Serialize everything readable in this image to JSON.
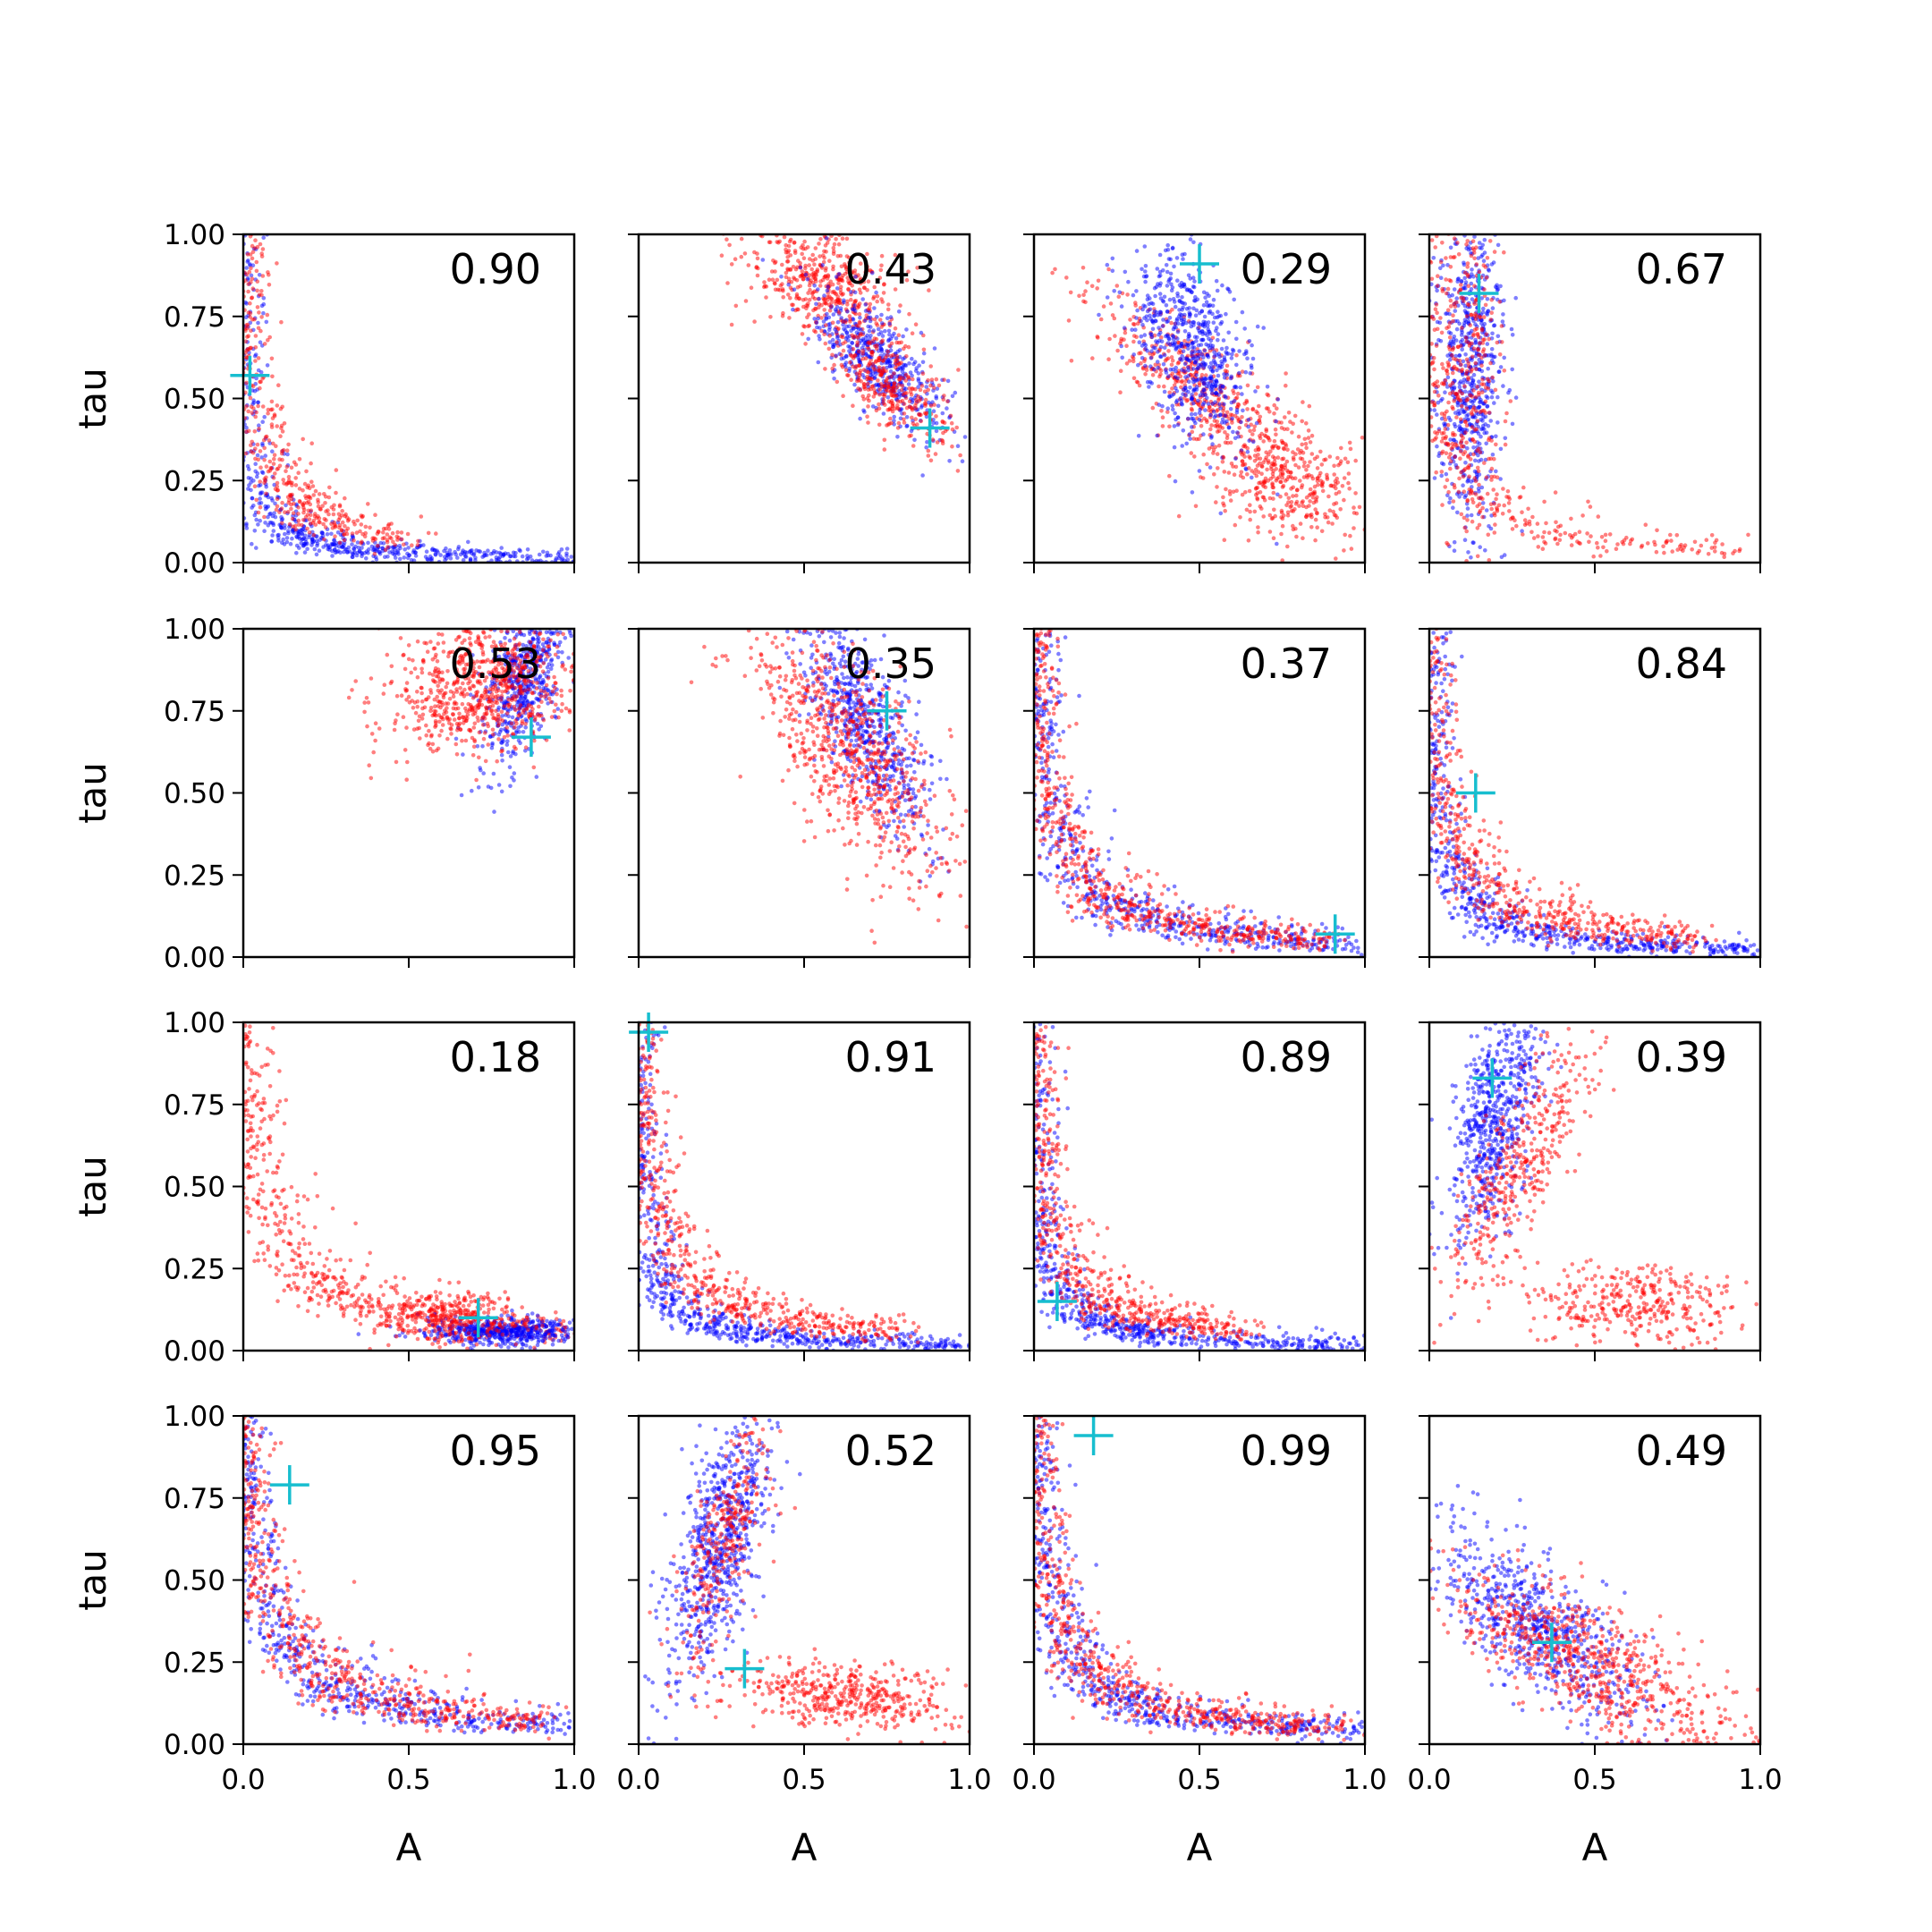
{
  "figure": {
    "xlabel": "A",
    "ylabel": "tau",
    "rows": 4,
    "cols": 4,
    "xlim": [
      0,
      1
    ],
    "ylim": [
      0,
      1
    ],
    "xticks": [
      "0.0",
      "0.5",
      "1.0"
    ],
    "yticks": [
      "0.00",
      "0.25",
      "0.50",
      "0.75",
      "1.00"
    ],
    "colors": {
      "series_a": "#0000ff",
      "series_b": "#ff0000",
      "marker": "#17becf"
    }
  },
  "chart_data": [
    {
      "type": "scatter",
      "value_label": "0.90",
      "marker": {
        "A": 0.02,
        "tau": 0.57
      },
      "clusters": [
        {
          "series": "blue",
          "shape": "hyperbola",
          "param": 0.015,
          "n": 600,
          "amax": 1.0
        },
        {
          "series": "red",
          "shape": "hyperbola",
          "param": 0.04,
          "n": 450,
          "amax": 0.5
        }
      ]
    },
    {
      "type": "scatter",
      "value_label": "0.43",
      "marker": {
        "A": 0.88,
        "tau": 0.41
      },
      "clusters": [
        {
          "series": "red",
          "shape": "blob",
          "cx": 0.55,
          "cy": 0.85,
          "sx": 0.12,
          "sy": 0.08,
          "rot": -0.6,
          "n": 450
        },
        {
          "series": "blue",
          "shape": "blob",
          "cx": 0.72,
          "cy": 0.62,
          "sx": 0.14,
          "sy": 0.05,
          "rot": -0.85,
          "n": 500
        },
        {
          "series": "red",
          "shape": "blob",
          "cx": 0.76,
          "cy": 0.55,
          "sx": 0.13,
          "sy": 0.05,
          "rot": -0.85,
          "n": 350
        }
      ]
    },
    {
      "type": "scatter",
      "value_label": "0.29",
      "marker": {
        "A": 0.5,
        "tau": 0.91
      },
      "clusters": [
        {
          "series": "red",
          "shape": "blob",
          "cx": 0.55,
          "cy": 0.48,
          "sx": 0.26,
          "sy": 0.07,
          "rot": -0.7,
          "n": 600
        },
        {
          "series": "blue",
          "shape": "blob",
          "cx": 0.48,
          "cy": 0.65,
          "sx": 0.16,
          "sy": 0.08,
          "rot": -1.2,
          "n": 650
        },
        {
          "series": "red",
          "shape": "blob",
          "cx": 0.78,
          "cy": 0.22,
          "sx": 0.12,
          "sy": 0.07,
          "rot": 0.0,
          "n": 250
        }
      ]
    },
    {
      "type": "scatter",
      "value_label": "0.67",
      "marker": {
        "A": 0.15,
        "tau": 0.82
      },
      "clusters": [
        {
          "series": "blue",
          "shape": "blob",
          "cx": 0.12,
          "cy": 0.6,
          "sx": 0.25,
          "sy": 0.05,
          "rot": 1.57,
          "n": 650
        },
        {
          "series": "red",
          "shape": "blob",
          "cx": 0.12,
          "cy": 0.62,
          "sx": 0.25,
          "sy": 0.05,
          "rot": 1.57,
          "n": 300
        },
        {
          "series": "red",
          "shape": "hyperbola",
          "param": 0.04,
          "n": 300,
          "amax": 0.95
        }
      ]
    },
    {
      "type": "scatter",
      "value_label": "0.53",
      "marker": {
        "A": 0.87,
        "tau": 0.67
      },
      "clusters": [
        {
          "series": "blue",
          "shape": "blob",
          "cx": 0.85,
          "cy": 0.85,
          "sx": 0.14,
          "sy": 0.05,
          "rot": 1.3,
          "n": 550
        },
        {
          "series": "red",
          "shape": "blob",
          "cx": 0.72,
          "cy": 0.82,
          "sx": 0.15,
          "sy": 0.09,
          "rot": 0.2,
          "n": 750
        }
      ]
    },
    {
      "type": "scatter",
      "value_label": "0.35",
      "marker": {
        "A": 0.75,
        "tau": 0.75
      },
      "clusters": [
        {
          "series": "blue",
          "shape": "blob",
          "cx": 0.68,
          "cy": 0.72,
          "sx": 0.18,
          "sy": 0.06,
          "rot": -1.1,
          "n": 600
        },
        {
          "series": "red",
          "shape": "blob",
          "cx": 0.64,
          "cy": 0.62,
          "sx": 0.24,
          "sy": 0.09,
          "rot": -1.0,
          "n": 750
        }
      ]
    },
    {
      "type": "scatter",
      "value_label": "0.37",
      "marker": {
        "A": 0.91,
        "tau": 0.07
      },
      "clusters": [
        {
          "series": "blue",
          "shape": "hyperbola",
          "param": 0.045,
          "n": 600,
          "amax": 1.0
        },
        {
          "series": "red",
          "shape": "hyperbola",
          "param": 0.05,
          "n": 650,
          "amax": 0.9
        }
      ]
    },
    {
      "type": "scatter",
      "value_label": "0.84",
      "marker": {
        "A": 0.14,
        "tau": 0.5
      },
      "clusters": [
        {
          "series": "blue",
          "shape": "hyperbola",
          "param": 0.025,
          "n": 650,
          "amax": 1.0
        },
        {
          "series": "red",
          "shape": "hyperbola",
          "param": 0.05,
          "n": 600,
          "amax": 0.8
        }
      ]
    },
    {
      "type": "scatter",
      "value_label": "0.18",
      "marker": {
        "A": 0.71,
        "tau": 0.1
      },
      "clusters": [
        {
          "series": "red",
          "shape": "hyperbola",
          "param": 0.065,
          "n": 600,
          "amax": 1.0
        },
        {
          "series": "blue",
          "shape": "blob",
          "cx": 0.78,
          "cy": 0.06,
          "sx": 0.12,
          "sy": 0.02,
          "rot": 0.0,
          "n": 500
        },
        {
          "series": "red",
          "shape": "blob",
          "cx": 0.62,
          "cy": 0.1,
          "sx": 0.12,
          "sy": 0.04,
          "rot": 0.0,
          "n": 300
        }
      ]
    },
    {
      "type": "scatter",
      "value_label": "0.91",
      "marker": {
        "A": 0.03,
        "tau": 0.97
      },
      "clusters": [
        {
          "series": "blue",
          "shape": "hyperbola",
          "param": 0.02,
          "n": 650,
          "amax": 1.0
        },
        {
          "series": "red",
          "shape": "hyperbola",
          "param": 0.05,
          "n": 600,
          "amax": 0.8
        }
      ]
    },
    {
      "type": "scatter",
      "value_label": "0.89",
      "marker": {
        "A": 0.07,
        "tau": 0.15
      },
      "clusters": [
        {
          "series": "blue",
          "shape": "hyperbola",
          "param": 0.018,
          "n": 650,
          "amax": 1.0
        },
        {
          "series": "red",
          "shape": "hyperbola",
          "param": 0.04,
          "n": 600,
          "amax": 0.65
        }
      ]
    },
    {
      "type": "scatter",
      "value_label": "0.39",
      "marker": {
        "A": 0.19,
        "tau": 0.83
      },
      "clusters": [
        {
          "series": "blue",
          "shape": "blob",
          "cx": 0.2,
          "cy": 0.73,
          "sx": 0.2,
          "sy": 0.06,
          "rot": 1.35,
          "n": 650
        },
        {
          "series": "red",
          "shape": "blob",
          "cx": 0.28,
          "cy": 0.58,
          "sx": 0.22,
          "sy": 0.06,
          "rot": 1.1,
          "n": 400
        },
        {
          "series": "red",
          "shape": "blob",
          "cx": 0.62,
          "cy": 0.14,
          "sx": 0.16,
          "sy": 0.06,
          "rot": 0.0,
          "n": 350
        }
      ]
    },
    {
      "type": "scatter",
      "value_label": "0.95",
      "marker": {
        "A": 0.14,
        "tau": 0.79
      },
      "clusters": [
        {
          "series": "blue",
          "shape": "hyperbola",
          "param": 0.06,
          "n": 600,
          "amax": 1.0
        },
        {
          "series": "red",
          "shape": "hyperbola",
          "param": 0.07,
          "n": 650,
          "amax": 0.9
        }
      ]
    },
    {
      "type": "scatter",
      "value_label": "0.52",
      "marker": {
        "A": 0.32,
        "tau": 0.23
      },
      "clusters": [
        {
          "series": "blue",
          "shape": "blob",
          "cx": 0.24,
          "cy": 0.62,
          "sx": 0.22,
          "sy": 0.06,
          "rot": 1.3,
          "n": 700
        },
        {
          "series": "red",
          "shape": "blob",
          "cx": 0.26,
          "cy": 0.62,
          "sx": 0.2,
          "sy": 0.05,
          "rot": 1.3,
          "n": 300
        },
        {
          "series": "red",
          "shape": "blob",
          "cx": 0.62,
          "cy": 0.15,
          "sx": 0.18,
          "sy": 0.05,
          "rot": -0.1,
          "n": 450
        }
      ]
    },
    {
      "type": "scatter",
      "value_label": "0.99",
      "marker": {
        "A": 0.18,
        "tau": 0.94
      },
      "clusters": [
        {
          "series": "blue",
          "shape": "hyperbola",
          "param": 0.045,
          "n": 650,
          "amax": 1.0
        },
        {
          "series": "red",
          "shape": "hyperbola",
          "param": 0.05,
          "n": 650,
          "amax": 0.95
        }
      ]
    },
    {
      "type": "scatter",
      "value_label": "0.49",
      "marker": {
        "A": 0.37,
        "tau": 0.31
      },
      "clusters": [
        {
          "series": "blue",
          "shape": "blob",
          "cx": 0.33,
          "cy": 0.36,
          "sx": 0.2,
          "sy": 0.08,
          "rot": -0.75,
          "n": 650
        },
        {
          "series": "red",
          "shape": "blob",
          "cx": 0.48,
          "cy": 0.25,
          "sx": 0.26,
          "sy": 0.08,
          "rot": -0.5,
          "n": 700
        }
      ]
    }
  ]
}
